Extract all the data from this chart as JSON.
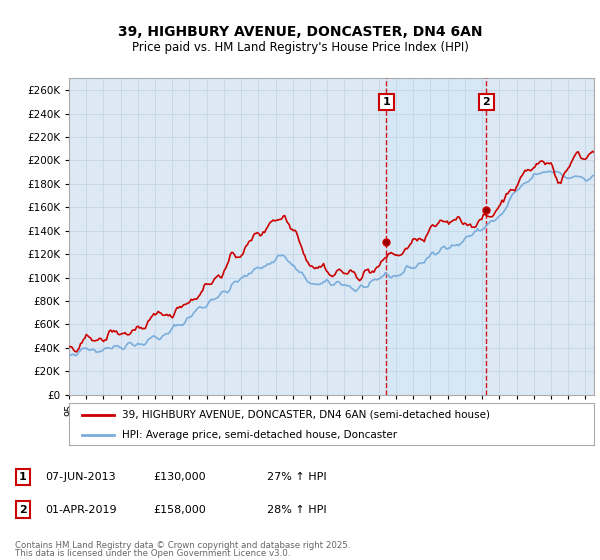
{
  "title_line1": "39, HIGHBURY AVENUE, DONCASTER, DN4 6AN",
  "title_line2": "Price paid vs. HM Land Registry's House Price Index (HPI)",
  "ylim": [
    0,
    270000
  ],
  "ytick_step": 20000,
  "line1_color": "#cc0000",
  "line2_color": "#7aaddc",
  "shade_color": "#d6e8f5",
  "vline_color": "#cc0000",
  "grid_color": "#c8d8e8",
  "background_color": "#dce9f5",
  "legend_label1": "39, HIGHBURY AVENUE, DONCASTER, DN4 6AN (semi-detached house)",
  "legend_label2": "HPI: Average price, semi-detached house, Doncaster",
  "annotation1_date": "07-JUN-2013",
  "annotation1_price": "£130,000",
  "annotation1_change": "27% ↑ HPI",
  "annotation2_date": "01-APR-2019",
  "annotation2_price": "£158,000",
  "annotation2_change": "28% ↑ HPI",
  "footer_line1": "Contains HM Land Registry data © Crown copyright and database right 2025.",
  "footer_line2": "This data is licensed under the Open Government Licence v3.0.",
  "xmin": 1995,
  "xmax": 2025.5,
  "sale1_year": 2013.44,
  "sale1_price": 130000,
  "sale2_year": 2019.25,
  "sale2_price": 158000
}
